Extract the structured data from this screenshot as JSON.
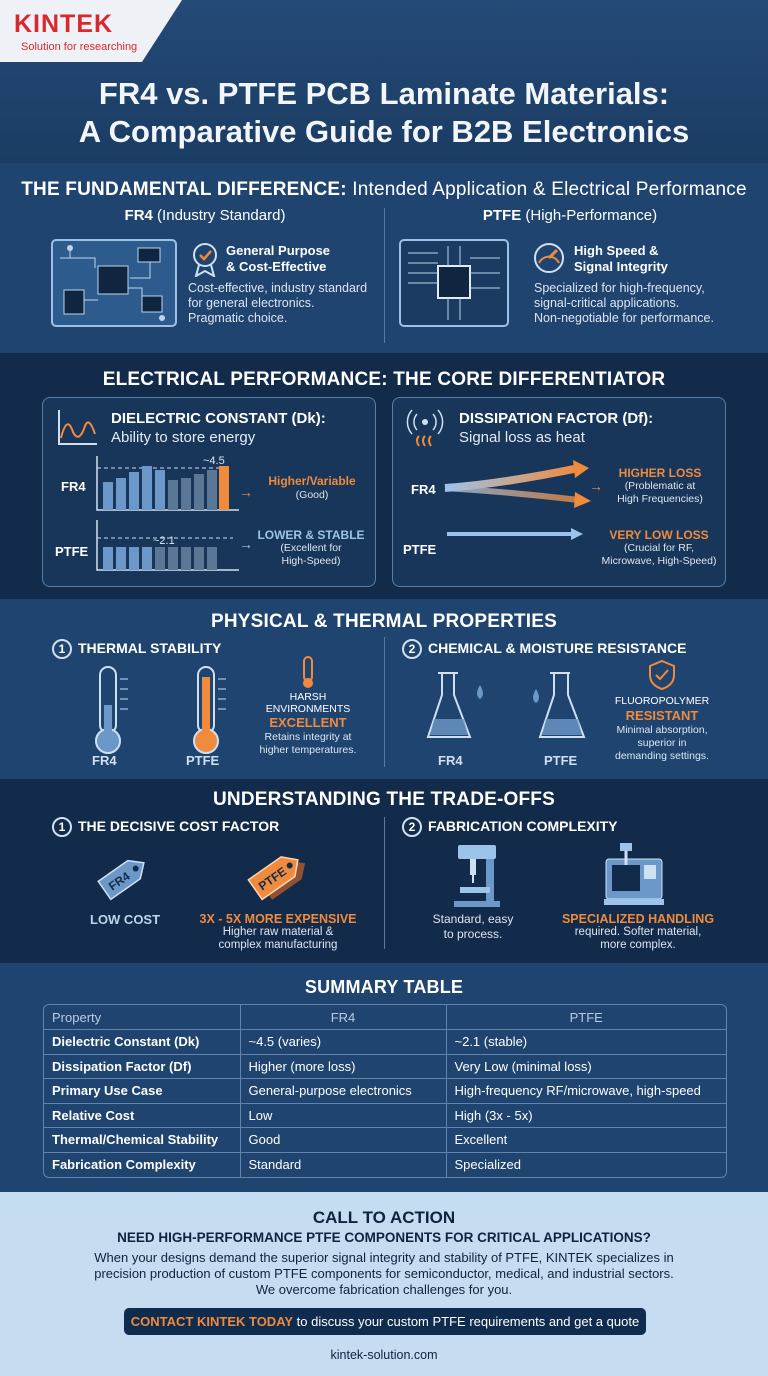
{
  "brand": {
    "name": "KINTEK",
    "tagline": "Solution for researching"
  },
  "title": {
    "line1": "FR4 vs. PTFE PCB Laminate Materials:",
    "line2": "A Comparative Guide for B2B Electronics"
  },
  "fundamental": {
    "heading_bold": "THE FUNDAMENTAL DIFFERENCE:",
    "heading_rest": " Intended Application & Electrical Performance",
    "fr4": {
      "name": "FR4",
      "sub": " (Industry Standard)",
      "badge1": "General Purpose",
      "badge2": "& Cost-Effective",
      "d1": "Cost-effective, industry standard",
      "d2": "for general electronics.",
      "d3": "Pragmatic choice."
    },
    "ptfe": {
      "name": "PTFE",
      "sub": " (High-Performance)",
      "badge1": "High Speed &",
      "badge2": "Signal Integrity",
      "d1": "Specialized for high-frequency,",
      "d2": "signal-critical applications.",
      "d3": "Non-negotiable for performance."
    }
  },
  "electrical": {
    "heading": "ELECTRICAL PERFORMANCE: THE CORE DIFFERENTIATOR",
    "dk": {
      "title": "DIELECTRIC CONSTANT (Dk):",
      "sub": "Ability to store energy",
      "fr4": "FR4",
      "ptfe": "PTFE",
      "fr4_value": "~4.5",
      "ptfe_value": "~2.1",
      "fr4_note1": "Higher/Variable",
      "fr4_note2": "(Good)",
      "ptfe_note1": "LOWER & STABLE",
      "ptfe_note2": "(Excellent for",
      "ptfe_note3": "High-Speed)"
    },
    "df": {
      "title": "DISSIPATION FACTOR (Df):",
      "sub": "Signal loss as heat",
      "fr4": "FR4",
      "ptfe": "PTFE",
      "fr4_note1": "HIGHER LOSS",
      "fr4_note2": "(Problematic at",
      "fr4_note3": "High Frequencies)",
      "ptfe_note1": "VERY LOW LOSS",
      "ptfe_note2": "(Crucial for RF,",
      "ptfe_note3": "Microwave, High-Speed)"
    }
  },
  "physical": {
    "heading": "PHYSICAL & THERMAL PROPERTIES",
    "thermal": {
      "num": "1",
      "title": "THERMAL STABILITY",
      "fr4": "FR4",
      "ptfe": "PTFE",
      "n1": "HARSH",
      "n2": "ENVIRONMENTS",
      "n3": "EXCELLENT",
      "n4": "Retains integrity at",
      "n5": "higher temperatures."
    },
    "chemical": {
      "num": "2",
      "title": "CHEMICAL & MOISTURE RESISTANCE",
      "fr4": "FR4",
      "ptfe": "PTFE",
      "n1": "FLUOROPOLYMER",
      "n2": "RESISTANT",
      "n3": "Minimal absorption,",
      "n4": "superior in",
      "n5": "demanding settings."
    }
  },
  "tradeoffs": {
    "heading": "UNDERSTANDING THE TRADE-OFFS",
    "cost": {
      "num": "1",
      "title": "THE DECISIVE COST FACTOR",
      "tag1": "FR4",
      "tag2": "PTFE",
      "low": "LOW COST",
      "high": "3X - 5X MORE EXPENSIVE",
      "h1": "Higher raw material &",
      "h2": "complex manufacturing"
    },
    "fab": {
      "num": "2",
      "title": "FABRICATION COMPLEXITY",
      "s1": "Standard, easy",
      "s2": "to process.",
      "sp1": "SPECIALIZED HANDLING",
      "sp2": "required. Softer material,",
      "sp3": "more complex."
    }
  },
  "summary": {
    "heading": "SUMMARY TABLE",
    "headers": [
      "Property",
      "FR4",
      "PTFE"
    ],
    "rows": [
      [
        "Dielectric Constant (Dk)",
        "~4.5 (varies)",
        "~2.1 (stable)"
      ],
      [
        "Dissipation Factor (Df)",
        "Higher (more loss)",
        "Very Low (minimal loss)"
      ],
      [
        "Primary Use Case",
        "General-purpose electronics",
        "High-frequency RF/microwave, high-speed"
      ],
      [
        "Relative Cost",
        "Low",
        "High (3x - 5x)"
      ],
      [
        "Thermal/Chemical Stability",
        "Good",
        "Excellent"
      ],
      [
        "Fabrication Complexity",
        "Standard",
        "Specialized"
      ]
    ]
  },
  "cta": {
    "heading": "CALL TO ACTION",
    "sub": "NEED HIGH-PERFORMANCE PTFE COMPONENTS FOR CRITICAL APPLICATIONS?",
    "p1": "When your designs demand the superior signal integrity and stability of PTFE, KINTEK specializes in",
    "p2": "precision production of custom PTFE components for semiconductor, medical, and industrial sectors.",
    "p3": "We overcome fabrication challenges for you.",
    "button_bold": "CONTACT KINTEK TODAY",
    "button_rest": " to discuss your custom PTFE requirements and get a quote",
    "url": "kintek-solution.com"
  },
  "colors": {
    "accent": "#f08a3c",
    "navy": "#132b4a",
    "blue": "#1f4470",
    "light": "#c6dcf0"
  }
}
